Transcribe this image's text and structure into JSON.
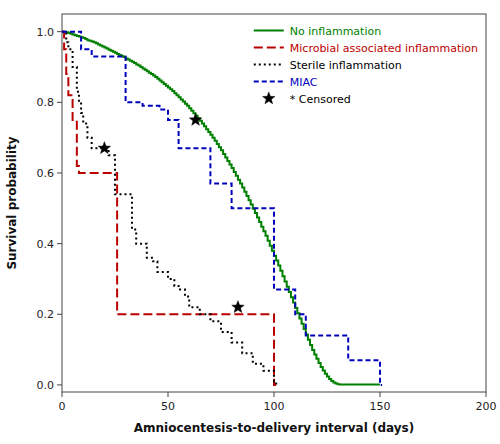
{
  "chart_data": {
    "type": "step",
    "xlabel": "Amniocentesis-to-delivery interval (days)",
    "ylabel": "Survival probability",
    "xlim": [
      0,
      200
    ],
    "ylim": [
      -0.02,
      1.05
    ],
    "xticks": [
      0,
      50,
      100,
      150,
      200
    ],
    "yticks": [
      {
        "value": 0.0,
        "label": "0.0"
      },
      0.2,
      0.4,
      0.6,
      0.8,
      {
        "value": 1.0,
        "label": "1.0"
      }
    ],
    "grid": false,
    "legend": "upper right",
    "series": [
      {
        "name": "No inflammation",
        "color": "#008000",
        "line_style": "solid",
        "x": [
          0,
          1,
          2,
          3,
          4,
          5,
          6,
          7,
          8,
          9,
          10,
          11,
          12,
          13,
          14,
          15,
          16,
          17,
          18,
          19,
          20,
          21,
          22,
          23,
          24,
          25,
          26,
          27,
          28,
          29,
          30,
          31,
          32,
          33,
          34,
          35,
          36,
          37,
          38,
          39,
          40,
          41,
          42,
          43,
          44,
          45,
          46,
          47,
          48,
          49,
          50,
          51,
          52,
          53,
          54,
          55,
          56,
          57,
          58,
          59,
          60,
          61,
          62,
          63,
          64,
          65,
          66,
          67,
          68,
          69,
          70,
          71,
          72,
          73,
          74,
          75,
          76,
          77,
          78,
          79,
          80,
          81,
          82,
          83,
          84,
          85,
          86,
          87,
          88,
          89,
          90,
          91,
          92,
          93,
          94,
          95,
          96,
          97,
          98,
          99,
          100,
          101,
          102,
          103,
          104,
          105,
          106,
          107,
          108,
          109,
          110,
          111,
          112,
          113,
          114,
          115,
          116,
          117,
          118,
          119,
          120,
          121,
          122,
          123,
          124,
          125,
          126,
          127,
          128,
          129,
          130,
          131,
          132,
          133,
          134,
          135,
          136,
          137,
          138,
          139,
          140,
          141,
          142,
          143,
          144,
          145,
          146,
          147,
          148,
          149,
          150
        ],
        "values": [
          1.0,
          1.0,
          0.998,
          0.996,
          0.994,
          0.992,
          0.99,
          0.988,
          0.986,
          0.984,
          0.982,
          0.979,
          0.976,
          0.974,
          0.972,
          0.97,
          0.967,
          0.964,
          0.961,
          0.958,
          0.955,
          0.952,
          0.949,
          0.946,
          0.943,
          0.94,
          0.937,
          0.934,
          0.931,
          0.928,
          0.924,
          0.921,
          0.918,
          0.915,
          0.911,
          0.907,
          0.904,
          0.9,
          0.896,
          0.892,
          0.888,
          0.884,
          0.88,
          0.876,
          0.872,
          0.867,
          0.862,
          0.857,
          0.852,
          0.847,
          0.842,
          0.837,
          0.832,
          0.826,
          0.82,
          0.814,
          0.808,
          0.802,
          0.796,
          0.79,
          0.783,
          0.776,
          0.769,
          0.762,
          0.755,
          0.748,
          0.74,
          0.732,
          0.724,
          0.716,
          0.708,
          0.7,
          0.691,
          0.682,
          0.673,
          0.664,
          0.654,
          0.644,
          0.634,
          0.624,
          0.614,
          0.603,
          0.592,
          0.581,
          0.57,
          0.559,
          0.547,
          0.535,
          0.523,
          0.511,
          0.499,
          0.487,
          0.474,
          0.461,
          0.448,
          0.435,
          0.422,
          0.408,
          0.394,
          0.38,
          0.366,
          0.352,
          0.338,
          0.323,
          0.308,
          0.293,
          0.278,
          0.263,
          0.248,
          0.233,
          0.218,
          0.203,
          0.188,
          0.173,
          0.158,
          0.143,
          0.128,
          0.113,
          0.099,
          0.086,
          0.074,
          0.062,
          0.051,
          0.041,
          0.032,
          0.024,
          0.017,
          0.011,
          0.007,
          0.004,
          0.002,
          0.001,
          0.001,
          0.001,
          0.001,
          0.001,
          0.001,
          0.001,
          0.001,
          0.001,
          0.001,
          0.001,
          0.001,
          0.001,
          0.001,
          0.001,
          0.001,
          0.001,
          0.001,
          0.001,
          0.001
        ]
      },
      {
        "name": "Microbial associated inflammation",
        "color": "#bb0000",
        "line_style": "long-dashed",
        "x": [
          0,
          1,
          2,
          3,
          5,
          7,
          8,
          25,
          26,
          90,
          91,
          100,
          101
        ],
        "values": [
          1.0,
          0.95,
          0.88,
          0.82,
          0.75,
          0.62,
          0.6,
          0.6,
          0.2,
          0.2,
          0.2,
          0.0,
          0.0
        ]
      },
      {
        "name": "Sterile inflammation",
        "color": "#000000",
        "line_style": "dotted",
        "x": [
          0,
          2,
          3,
          5,
          7,
          8,
          9,
          10,
          12,
          14,
          16,
          18,
          20,
          22,
          25,
          28,
          30,
          33,
          35,
          38,
          40,
          43,
          45,
          48,
          50,
          53,
          55,
          58,
          60,
          65,
          70,
          75,
          80,
          85,
          90,
          95,
          100,
          101
        ],
        "values": [
          1.0,
          0.97,
          0.95,
          0.9,
          0.83,
          0.8,
          0.77,
          0.74,
          0.7,
          0.67,
          0.67,
          0.67,
          0.67,
          0.65,
          0.54,
          0.54,
          0.54,
          0.44,
          0.4,
          0.4,
          0.36,
          0.35,
          0.32,
          0.32,
          0.3,
          0.28,
          0.27,
          0.25,
          0.22,
          0.2,
          0.18,
          0.15,
          0.12,
          0.09,
          0.06,
          0.04,
          0.01,
          0.0
        ]
      },
      {
        "name": "MIAC",
        "color": "#0000bb",
        "line_style": "dashed",
        "x": [
          0,
          1,
          2,
          3,
          4,
          5,
          6,
          7,
          8,
          9,
          10,
          12,
          14,
          16,
          18,
          20,
          25,
          28,
          30,
          33,
          35,
          38,
          40,
          43,
          46,
          50,
          53,
          55,
          58,
          60,
          63,
          65,
          68,
          70,
          73,
          75,
          78,
          80,
          85,
          88,
          90,
          95,
          100,
          105,
          110,
          115,
          120,
          125,
          130,
          135,
          140,
          145,
          150,
          151
        ],
        "values": [
          1.0,
          1.0,
          1.0,
          1.0,
          1.0,
          1.0,
          1.0,
          1.0,
          1.0,
          0.95,
          0.95,
          0.95,
          0.93,
          0.93,
          0.93,
          0.93,
          0.93,
          0.93,
          0.8,
          0.8,
          0.8,
          0.79,
          0.79,
          0.79,
          0.78,
          0.75,
          0.75,
          0.67,
          0.67,
          0.67,
          0.67,
          0.67,
          0.67,
          0.57,
          0.57,
          0.57,
          0.57,
          0.5,
          0.5,
          0.5,
          0.5,
          0.5,
          0.27,
          0.27,
          0.2,
          0.14,
          0.14,
          0.14,
          0.14,
          0.07,
          0.07,
          0.07,
          0.0,
          0.0
        ]
      },
      {
        "name": "* Censored",
        "color": "#000000",
        "type": "scatter",
        "marker": "star",
        "x": [
          83,
          20,
          63
        ],
        "values": [
          0.22,
          0.67,
          0.75
        ]
      }
    ]
  }
}
